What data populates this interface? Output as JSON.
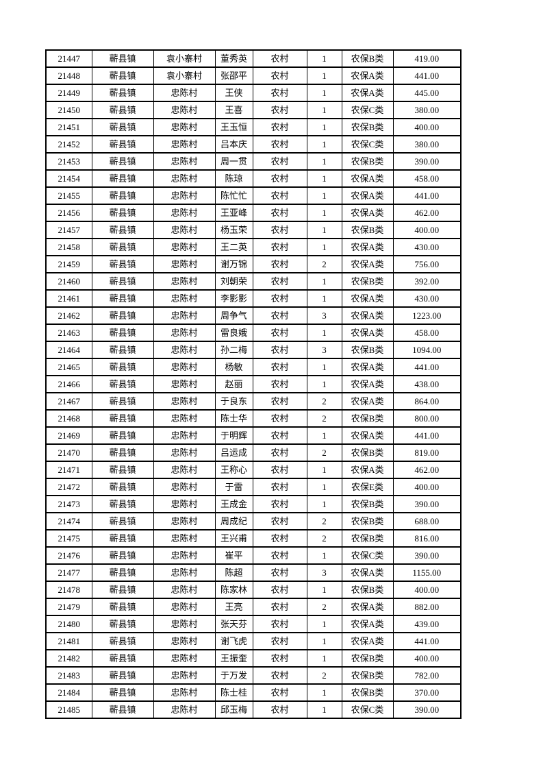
{
  "page": {
    "background_color": "#ffffff",
    "text_color": "#000000",
    "border_color": "#000000"
  },
  "table": {
    "column_keys": [
      "record-id",
      "town",
      "village",
      "person-name",
      "residence-type",
      "person-count",
      "insurance-class",
      "amount"
    ],
    "rows": [
      [
        "21447",
        "蕲县镇",
        "袁小寨村",
        "董秀英",
        "农村",
        "1",
        "农保B类",
        "419.00"
      ],
      [
        "21448",
        "蕲县镇",
        "袁小寨村",
        "张邵平",
        "农村",
        "1",
        "农保A类",
        "441.00"
      ],
      [
        "21449",
        "蕲县镇",
        "忠陈村",
        "王侠",
        "农村",
        "1",
        "农保A类",
        "445.00"
      ],
      [
        "21450",
        "蕲县镇",
        "忠陈村",
        "王喜",
        "农村",
        "1",
        "农保C类",
        "380.00"
      ],
      [
        "21451",
        "蕲县镇",
        "忠陈村",
        "王玉恒",
        "农村",
        "1",
        "农保B类",
        "400.00"
      ],
      [
        "21452",
        "蕲县镇",
        "忠陈村",
        "吕本庆",
        "农村",
        "1",
        "农保C类",
        "380.00"
      ],
      [
        "21453",
        "蕲县镇",
        "忠陈村",
        "周一贯",
        "农村",
        "1",
        "农保B类",
        "390.00"
      ],
      [
        "21454",
        "蕲县镇",
        "忠陈村",
        "陈琼",
        "农村",
        "1",
        "农保A类",
        "458.00"
      ],
      [
        "21455",
        "蕲县镇",
        "忠陈村",
        "陈忙忙",
        "农村",
        "1",
        "农保A类",
        "441.00"
      ],
      [
        "21456",
        "蕲县镇",
        "忠陈村",
        "王亚峰",
        "农村",
        "1",
        "农保A类",
        "462.00"
      ],
      [
        "21457",
        "蕲县镇",
        "忠陈村",
        "杨玉荣",
        "农村",
        "1",
        "农保B类",
        "400.00"
      ],
      [
        "21458",
        "蕲县镇",
        "忠陈村",
        "王二英",
        "农村",
        "1",
        "农保A类",
        "430.00"
      ],
      [
        "21459",
        "蕲县镇",
        "忠陈村",
        "谢万锦",
        "农村",
        "2",
        "农保A类",
        "756.00"
      ],
      [
        "21460",
        "蕲县镇",
        "忠陈村",
        "刘朝荣",
        "农村",
        "1",
        "农保B类",
        "392.00"
      ],
      [
        "21461",
        "蕲县镇",
        "忠陈村",
        "李影影",
        "农村",
        "1",
        "农保A类",
        "430.00"
      ],
      [
        "21462",
        "蕲县镇",
        "忠陈村",
        "周争气",
        "农村",
        "3",
        "农保A类",
        "1223.00"
      ],
      [
        "21463",
        "蕲县镇",
        "忠陈村",
        "雷良娥",
        "农村",
        "1",
        "农保A类",
        "458.00"
      ],
      [
        "21464",
        "蕲县镇",
        "忠陈村",
        "孙二梅",
        "农村",
        "3",
        "农保B类",
        "1094.00"
      ],
      [
        "21465",
        "蕲县镇",
        "忠陈村",
        "杨敏",
        "农村",
        "1",
        "农保A类",
        "441.00"
      ],
      [
        "21466",
        "蕲县镇",
        "忠陈村",
        "赵丽",
        "农村",
        "1",
        "农保A类",
        "438.00"
      ],
      [
        "21467",
        "蕲县镇",
        "忠陈村",
        "于良东",
        "农村",
        "2",
        "农保A类",
        "864.00"
      ],
      [
        "21468",
        "蕲县镇",
        "忠陈村",
        "陈士华",
        "农村",
        "2",
        "农保B类",
        "800.00"
      ],
      [
        "21469",
        "蕲县镇",
        "忠陈村",
        "于明辉",
        "农村",
        "1",
        "农保A类",
        "441.00"
      ],
      [
        "21470",
        "蕲县镇",
        "忠陈村",
        "吕运成",
        "农村",
        "2",
        "农保B类",
        "819.00"
      ],
      [
        "21471",
        "蕲县镇",
        "忠陈村",
        "王称心",
        "农村",
        "1",
        "农保A类",
        "462.00"
      ],
      [
        "21472",
        "蕲县镇",
        "忠陈村",
        "于雷",
        "农村",
        "1",
        "农保E类",
        "400.00"
      ],
      [
        "21473",
        "蕲县镇",
        "忠陈村",
        "王成金",
        "农村",
        "1",
        "农保B类",
        "390.00"
      ],
      [
        "21474",
        "蕲县镇",
        "忠陈村",
        "周成纪",
        "农村",
        "2",
        "农保B类",
        "688.00"
      ],
      [
        "21475",
        "蕲县镇",
        "忠陈村",
        "王兴甫",
        "农村",
        "2",
        "农保B类",
        "816.00"
      ],
      [
        "21476",
        "蕲县镇",
        "忠陈村",
        "崔平",
        "农村",
        "1",
        "农保C类",
        "390.00"
      ],
      [
        "21477",
        "蕲县镇",
        "忠陈村",
        "陈超",
        "农村",
        "3",
        "农保A类",
        "1155.00"
      ],
      [
        "21478",
        "蕲县镇",
        "忠陈村",
        "陈家林",
        "农村",
        "1",
        "农保B类",
        "400.00"
      ],
      [
        "21479",
        "蕲县镇",
        "忠陈村",
        "王亮",
        "农村",
        "2",
        "农保A类",
        "882.00"
      ],
      [
        "21480",
        "蕲县镇",
        "忠陈村",
        "张天芬",
        "农村",
        "1",
        "农保A类",
        "439.00"
      ],
      [
        "21481",
        "蕲县镇",
        "忠陈村",
        "谢飞虎",
        "农村",
        "1",
        "农保A类",
        "441.00"
      ],
      [
        "21482",
        "蕲县镇",
        "忠陈村",
        "王振奎",
        "农村",
        "1",
        "农保B类",
        "400.00"
      ],
      [
        "21483",
        "蕲县镇",
        "忠陈村",
        "于万发",
        "农村",
        "2",
        "农保B类",
        "782.00"
      ],
      [
        "21484",
        "蕲县镇",
        "忠陈村",
        "陈士桂",
        "农村",
        "1",
        "农保B类",
        "370.00"
      ],
      [
        "21485",
        "蕲县镇",
        "忠陈村",
        "邱玉梅",
        "农村",
        "1",
        "农保C类",
        "390.00"
      ]
    ]
  }
}
